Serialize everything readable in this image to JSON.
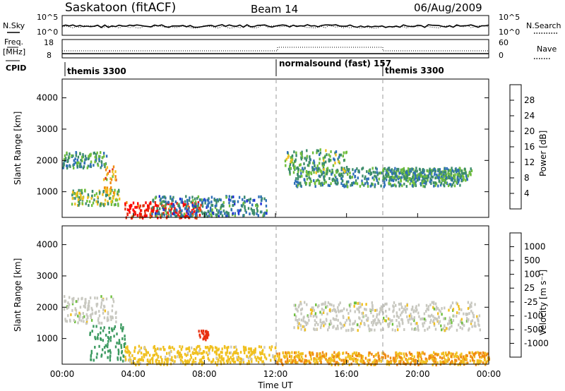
{
  "header": {
    "station": "Saskatoon (fitACF)",
    "beam": "Beam 14",
    "date": "06/Aug/2009"
  },
  "strip_nsky": {
    "left_label": "N.Sky",
    "right_label": "N.Search",
    "ticks_left": [
      "10^5",
      "10^0"
    ],
    "ticks_right": [
      "10^5",
      "10^0"
    ]
  },
  "strip_freq": {
    "left_label_1": "Freq.",
    "left_label_2": "[MHz]",
    "right_label": "Nave",
    "ticks_left": [
      "18",
      "8"
    ],
    "ticks_right": [
      "60",
      "0"
    ]
  },
  "cpid": {
    "label": "CPID",
    "segments": [
      {
        "name": "themis 3300",
        "start_h": 0
      },
      {
        "name": "normalsound (fast) 157",
        "start_h": 12
      },
      {
        "name": "themis 3300",
        "start_h": 18
      }
    ]
  },
  "x_axis": {
    "label": "Time UT",
    "ticks": [
      "00:00",
      "04:00",
      "08:00",
      "12:00",
      "16:00",
      "20:00",
      "00:00"
    ]
  },
  "power_panel": {
    "ylabel": "Slant Range [km]",
    "yticks": [
      "4000",
      "3000",
      "2000",
      "1000"
    ],
    "colorbar_label": "Power [dB]",
    "colorbar_ticks": [
      "28",
      "24",
      "20",
      "16",
      "12",
      "8",
      "4"
    ],
    "colors": [
      "#1f2fd8",
      "#2f6fb8",
      "#3c8c6a",
      "#6fbe3c",
      "#f0c020",
      "#f08a10",
      "#e03010",
      "#ff0000"
    ]
  },
  "velocity_panel": {
    "ylabel": "Slant Range [km]",
    "yticks": [
      "4000",
      "3000",
      "2000",
      "1000"
    ],
    "colorbar_label": "Velocity [m s⁻¹]",
    "colorbar_ticks": [
      "1000",
      "500",
      "100",
      "25",
      "-25",
      "-100",
      "-500",
      "-1000"
    ],
    "colors": [
      "#1b3aa8",
      "#2f7ab0",
      "#3c9a60",
      "#70c040",
      "#c8c8c0",
      "#f0c020",
      "#f08a10",
      "#e83010",
      "#ff0000"
    ]
  },
  "chart_data": {
    "type": "heatmap",
    "title": "Saskatoon (fitACF)  Beam 14  06/Aug/2009",
    "xlabel": "Time UT",
    "ylabel": "Slant Range [km]",
    "xlim_hours": [
      0,
      24
    ],
    "ylim_km": [
      180,
      4600
    ],
    "power_regions": [
      {
        "t0": 0.0,
        "t1": 2.5,
        "r0": 1800,
        "r1": 2300,
        "value_db": 10
      },
      {
        "t0": 0.5,
        "t1": 3.2,
        "r0": 600,
        "r1": 1100,
        "value_db": 14
      },
      {
        "t0": 2.3,
        "t1": 3.0,
        "r0": 1000,
        "r1": 1900,
        "value_db": 20
      },
      {
        "t0": 3.5,
        "t1": 7.8,
        "r0": 200,
        "r1": 700,
        "value_db": 28
      },
      {
        "t0": 5.0,
        "t1": 11.5,
        "r0": 250,
        "r1": 900,
        "value_db": 8
      },
      {
        "t0": 13.0,
        "t1": 22.5,
        "r0": 1200,
        "r1": 1800,
        "value_db": 10
      },
      {
        "t0": 12.5,
        "t1": 16.0,
        "r0": 1600,
        "r1": 2400,
        "value_db": 12
      },
      {
        "t0": 18.0,
        "t1": 23.0,
        "r0": 1400,
        "r1": 1800,
        "value_db": 10
      }
    ],
    "velocity_regions": [
      {
        "t0": 0.0,
        "t1": 3.0,
        "r0": 1500,
        "r1": 2400,
        "value_ms": 0
      },
      {
        "t0": 1.5,
        "t1": 3.5,
        "r0": 300,
        "r1": 1500,
        "value_ms": 300
      },
      {
        "t0": 3.5,
        "t1": 12.0,
        "r0": 200,
        "r1": 800,
        "value_ms": -50
      },
      {
        "t0": 12.0,
        "t1": 24.0,
        "r0": 200,
        "r1": 600,
        "value_ms": -100
      },
      {
        "t0": 13.0,
        "t1": 23.5,
        "r0": 1300,
        "r1": 2200,
        "value_ms": 0
      },
      {
        "t0": 7.6,
        "t1": 8.2,
        "r0": 1000,
        "r1": 1300,
        "value_ms": -700
      }
    ]
  }
}
